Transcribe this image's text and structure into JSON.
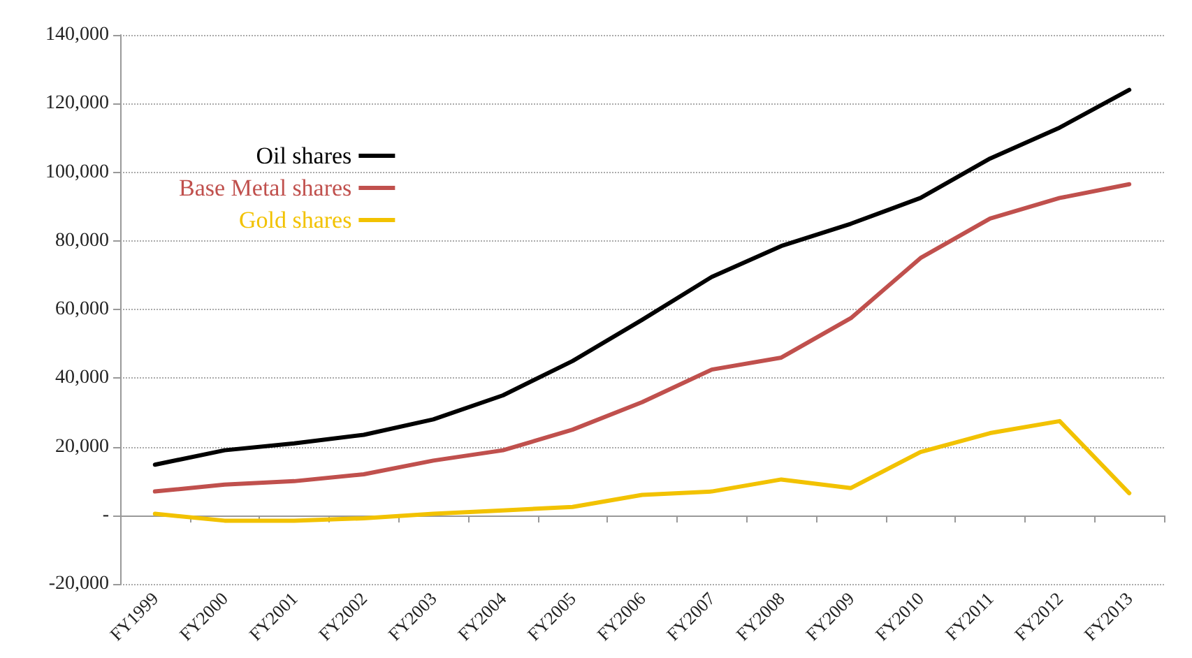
{
  "chart_data": {
    "type": "line",
    "categories": [
      "FY1999",
      "FY2000",
      "FY2001",
      "FY2002",
      "FY2003",
      "FY2004",
      "FY2005",
      "FY2006",
      "FY2007",
      "FY2008",
      "FY2009",
      "FY2010",
      "FY2011",
      "FY2012",
      "FY2013"
    ],
    "series": [
      {
        "name": "Oil shares",
        "color": "#000000",
        "values": [
          14800,
          19000,
          21000,
          23500,
          28000,
          35000,
          45000,
          57000,
          69500,
          78500,
          85000,
          92500,
          104000,
          113000,
          124000
        ]
      },
      {
        "name": "Base Metal shares",
        "color": "#c0504d",
        "values": [
          7000,
          9000,
          10000,
          12000,
          16000,
          19000,
          25000,
          33000,
          42500,
          46000,
          57500,
          75000,
          86500,
          92500,
          96500
        ]
      },
      {
        "name": "Gold shares",
        "color": "#f2c200",
        "values": [
          500,
          -1500,
          -1500,
          -800,
          500,
          1500,
          2500,
          6000,
          7000,
          10500,
          8000,
          18500,
          24000,
          27500,
          6500
        ]
      }
    ],
    "ylim": [
      -20000,
      140000
    ],
    "yticks": [
      {
        "value": -20000,
        "label": "-20,000"
      },
      {
        "value": 0,
        "label": "-"
      },
      {
        "value": 20000,
        "label": "20,000"
      },
      {
        "value": 40000,
        "label": "40,000"
      },
      {
        "value": 60000,
        "label": "60,000"
      },
      {
        "value": 80000,
        "label": "80,000"
      },
      {
        "value": 100000,
        "label": "100,000"
      },
      {
        "value": 120000,
        "label": "120,000"
      },
      {
        "value": 140000,
        "label": "140,000"
      }
    ],
    "grid": "y",
    "legend": "top left",
    "marker": "none",
    "line_style": "solid"
  }
}
